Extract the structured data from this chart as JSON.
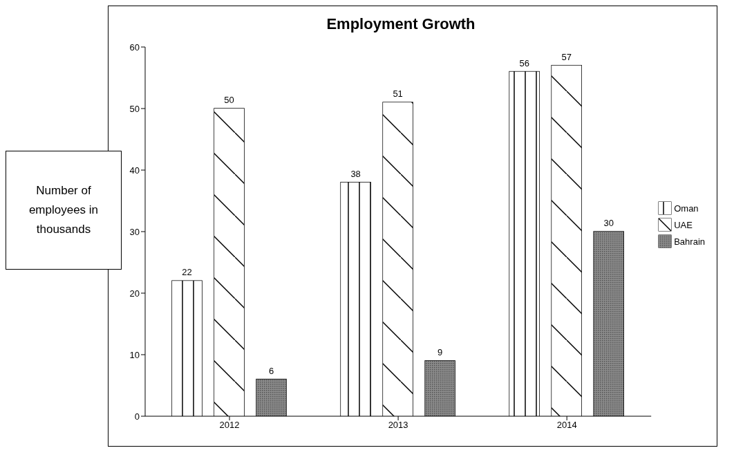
{
  "chart_data": {
    "type": "bar",
    "title": "Employment Growth",
    "ylabel": "Number of employees in thousands",
    "categories": [
      "2012",
      "2013",
      "2014"
    ],
    "series": [
      {
        "name": "Oman",
        "color": "#ffffff",
        "values": [
          22,
          38,
          56
        ]
      },
      {
        "name": "UAE",
        "color": "#ffffff",
        "values": [
          50,
          51,
          57
        ]
      },
      {
        "name": "Bahrain",
        "color": "#8c8c8c",
        "values": [
          6,
          9,
          30
        ]
      }
    ],
    "ylim": [
      0,
      60
    ],
    "yticks": [
      0,
      10,
      20,
      30,
      40,
      50,
      60
    ],
    "grid": false,
    "legend": "right",
    "data_labels": true
  }
}
